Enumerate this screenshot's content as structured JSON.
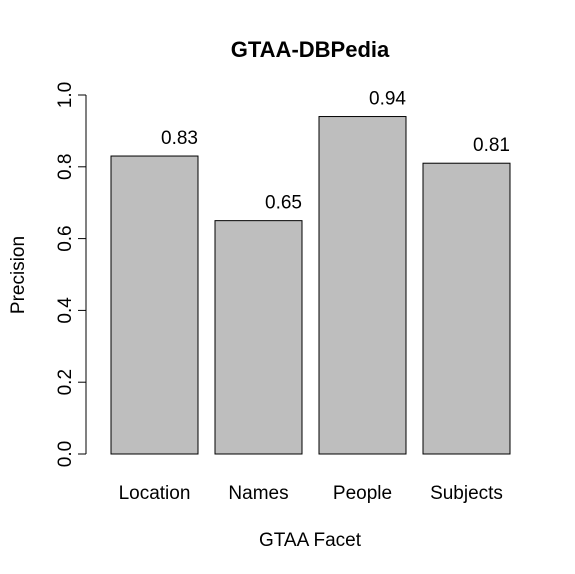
{
  "chart_data": {
    "type": "bar",
    "title": "GTAA-DBPedia",
    "xlabel": "GTAA Facet",
    "ylabel": "Precision",
    "categories": [
      "Location",
      "Names",
      "People",
      "Subjects"
    ],
    "values": [
      0.83,
      0.65,
      0.94,
      0.81
    ],
    "data_labels": [
      "0.83",
      "0.65",
      "0.94",
      "0.81"
    ],
    "ylim": [
      0,
      1
    ],
    "yticks": [
      {
        "value": 0.0,
        "label": "0.0"
      },
      {
        "value": 0.2,
        "label": "0.2"
      },
      {
        "value": 0.4,
        "label": "0.4"
      },
      {
        "value": 0.6,
        "label": "0.6"
      },
      {
        "value": 0.8,
        "label": "0.8"
      },
      {
        "value": 1.0,
        "label": "1.0"
      }
    ],
    "bar_color": "#bebebe",
    "grid": false,
    "legend": "none"
  }
}
